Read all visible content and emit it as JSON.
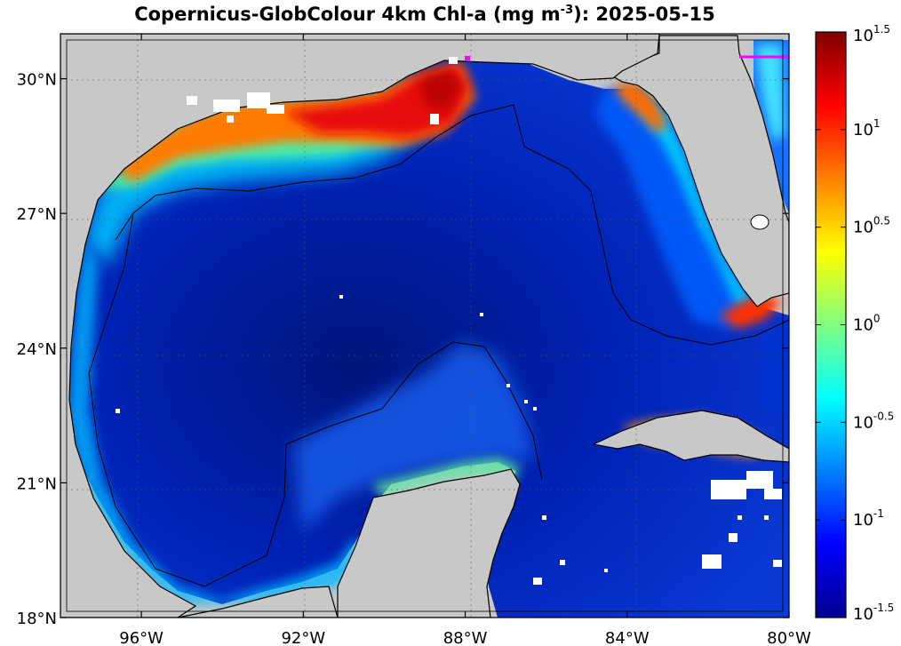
{
  "title": {
    "prefix": "Copernicus-GlobColour 4km Chl-a (mg m",
    "superscript": "-3",
    "suffix": "): 2025-05-15"
  },
  "map": {
    "lon_range": [
      -98,
      -80
    ],
    "lat_range": [
      18,
      31
    ],
    "lat_ticks": [
      {
        "value": 18,
        "label": "18°N"
      },
      {
        "value": 21,
        "label": "21°N"
      },
      {
        "value": 24,
        "label": "24°N"
      },
      {
        "value": 27,
        "label": "27°N"
      },
      {
        "value": 30,
        "label": "30°N"
      }
    ],
    "lon_ticks": [
      {
        "value": -96,
        "label": "96°W"
      },
      {
        "value": -92,
        "label": "92°W"
      },
      {
        "value": -88,
        "label": "88°W"
      },
      {
        "value": -84,
        "label": "84°W"
      },
      {
        "value": -80,
        "label": "80°W"
      }
    ],
    "gridlines": true,
    "land_color": "#c8c8c8",
    "no_data_color": "#ffffff",
    "eez_boundary_color": "#000000"
  },
  "colorbar": {
    "scale": "log10",
    "range_log10": [
      -1.5,
      1.5
    ],
    "ticks": [
      {
        "value": -1.5,
        "base": "10",
        "exp": "-1.5"
      },
      {
        "value": -1,
        "base": "10",
        "exp": "-1"
      },
      {
        "value": -0.5,
        "base": "10",
        "exp": "-0.5"
      },
      {
        "value": 0,
        "base": "10",
        "exp": "0"
      },
      {
        "value": 0.5,
        "base": "10",
        "exp": "0.5"
      },
      {
        "value": 1,
        "base": "10",
        "exp": "1"
      },
      {
        "value": 1.5,
        "base": "10",
        "exp": "1.5"
      }
    ],
    "colormap": "jet",
    "colors": [
      "#00008f",
      "#0000ff",
      "#0080ff",
      "#00ffff",
      "#80ff80",
      "#ffff00",
      "#ff8000",
      "#ff0000",
      "#800000"
    ]
  }
}
